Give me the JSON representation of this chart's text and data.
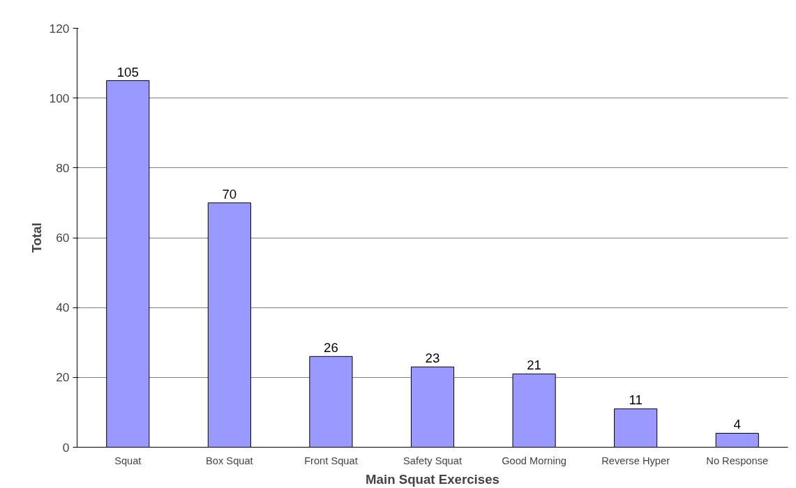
{
  "chart_data": {
    "type": "bar",
    "xlabel": "Main Squat Exercises",
    "ylabel": "Total",
    "categories": [
      "Squat",
      "Box Squat",
      "Front Squat",
      "Safety Squat",
      "Good Morning",
      "Reverse Hyper",
      "No Response"
    ],
    "values": [
      105,
      70,
      26,
      23,
      21,
      11,
      4
    ],
    "color": "#9999ff",
    "ylim": [
      0,
      120
    ],
    "yticks": [
      0,
      20,
      40,
      60,
      80,
      100,
      120
    ],
    "grid": "y",
    "data_labels": true
  }
}
